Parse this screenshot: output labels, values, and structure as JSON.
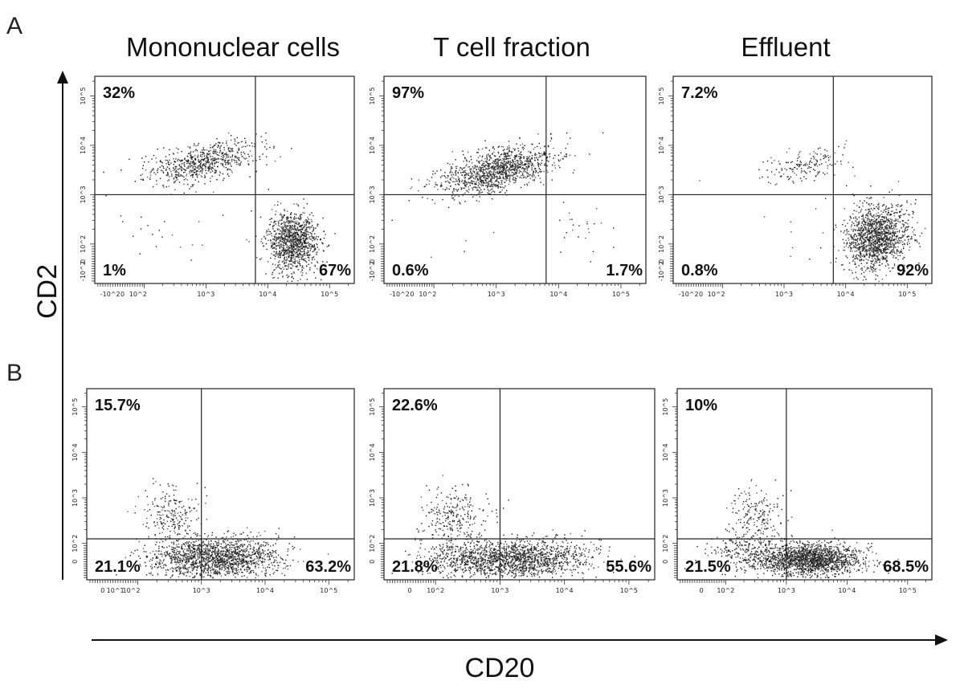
{
  "figure": {
    "panel_A": "A",
    "panel_B": "B",
    "column_titles": [
      "Mononuclear cells",
      "T cell fraction",
      "Effluent"
    ],
    "y_axis_title": "CD2",
    "x_axis_title": "CD20",
    "colors": {
      "dot": "#1a1a1a",
      "line": "#222222"
    }
  },
  "chart_data": [
    {
      "type": "scatter",
      "row": "A",
      "title": "Mononuclear cells",
      "xlabel": "CD20",
      "ylabel": "CD2",
      "quadrants": {
        "UL": "32%",
        "UR": "",
        "LL": "1%",
        "LR": "67%"
      },
      "xgate": 3.8,
      "ygate": 3.0,
      "x_ticks": [
        "-10^2",
        "0",
        "10^2",
        "10^3",
        "10^4",
        "10^5"
      ],
      "y_ticks": [
        "10^5",
        "10^4",
        "10^3",
        "10^2",
        "0",
        "-10^2"
      ],
      "clusters": [
        {
          "cx": 2.9,
          "cy": 3.65,
          "sx": 0.45,
          "sy": 0.18,
          "n": 700,
          "tilt": 0.25
        },
        {
          "cx": 4.4,
          "cy": 2.05,
          "sx": 0.2,
          "sy": 0.3,
          "n": 1100,
          "tilt": 0
        },
        {
          "cx": 2.4,
          "cy": 2.2,
          "sx": 0.7,
          "sy": 0.5,
          "n": 30,
          "tilt": 0
        }
      ]
    },
    {
      "type": "scatter",
      "row": "A",
      "title": "T cell fraction",
      "xlabel": "CD20",
      "ylabel": "CD2",
      "quadrants": {
        "UL": "97%",
        "UR": "",
        "LL": "0.6%",
        "LR": "1.7%"
      },
      "xgate": 3.8,
      "ygate": 3.0,
      "x_ticks": [
        "-10^2",
        "0",
        "10^2",
        "10^3",
        "10^4",
        "10^5"
      ],
      "y_ticks": [
        "10^5",
        "10^4",
        "10^3",
        "10^2",
        "0",
        "-10^2"
      ],
      "clusters": [
        {
          "cx": 3.0,
          "cy": 3.5,
          "sx": 0.45,
          "sy": 0.2,
          "n": 1200,
          "tilt": 0.3
        },
        {
          "cx": 4.4,
          "cy": 2.3,
          "sx": 0.25,
          "sy": 0.3,
          "n": 25,
          "tilt": 0
        },
        {
          "cx": 2.4,
          "cy": 2.4,
          "sx": 0.5,
          "sy": 0.4,
          "n": 6,
          "tilt": 0
        }
      ]
    },
    {
      "type": "scatter",
      "row": "A",
      "title": "Effluent",
      "xlabel": "CD20",
      "ylabel": "CD2",
      "quadrants": {
        "UL": "7.2%",
        "UR": "",
        "LL": "0.8%",
        "LR": "92%"
      },
      "xgate": 3.8,
      "ygate": 3.0,
      "x_ticks": [
        "-10^2",
        "0",
        "10^2",
        "10^3",
        "10^4",
        "10^5"
      ],
      "y_ticks": [
        "10^5",
        "10^4",
        "10^3",
        "10^2",
        "0",
        "-10^2"
      ],
      "clusters": [
        {
          "cx": 3.3,
          "cy": 3.6,
          "sx": 0.35,
          "sy": 0.15,
          "n": 160,
          "tilt": 0.25
        },
        {
          "cx": 4.5,
          "cy": 2.15,
          "sx": 0.25,
          "sy": 0.32,
          "n": 1400,
          "tilt": 0.2
        },
        {
          "cx": 3.4,
          "cy": 2.3,
          "sx": 0.5,
          "sy": 0.4,
          "n": 15,
          "tilt": 0
        }
      ]
    },
    {
      "type": "scatter",
      "row": "B",
      "title": "Mononuclear cells",
      "xlabel": "CD20",
      "ylabel": "CD2",
      "quadrants": {
        "UL": "15.7%",
        "UR": "",
        "LL": "21.1%",
        "LR": "63.2%"
      },
      "xgate": 3.0,
      "ygate": 2.1,
      "x_ticks": [
        "0",
        "10^1",
        "10^2",
        "10^3",
        "10^4",
        "10^5"
      ],
      "y_ticks": [
        "10^5",
        "10^4",
        "10^3",
        "10^2",
        "0"
      ],
      "clusters": [
        {
          "cx": 2.5,
          "cy": 2.6,
          "sx": 0.22,
          "sy": 0.3,
          "n": 220,
          "tilt": 0
        },
        {
          "cx": 3.2,
          "cy": 1.7,
          "sx": 0.5,
          "sy": 0.22,
          "n": 1600,
          "tilt": 0
        }
      ]
    },
    {
      "type": "scatter",
      "row": "B",
      "title": "T cell fraction",
      "xlabel": "CD20",
      "ylabel": "CD2",
      "quadrants": {
        "UL": "22.6%",
        "UR": "",
        "LL": "21.8%",
        "LR": "55.6%"
      },
      "xgate": 3.0,
      "ygate": 2.1,
      "x_ticks": [
        "0",
        "10^2",
        "10^3",
        "10^4",
        "10^5"
      ],
      "y_ticks": [
        "10^5",
        "10^4",
        "10^3",
        "10^2",
        "0"
      ],
      "clusters": [
        {
          "cx": 2.3,
          "cy": 2.6,
          "sx": 0.25,
          "sy": 0.3,
          "n": 260,
          "tilt": 0
        },
        {
          "cx": 3.3,
          "cy": 1.65,
          "sx": 0.5,
          "sy": 0.22,
          "n": 1400,
          "tilt": 0
        },
        {
          "cx": 2.4,
          "cy": 1.7,
          "sx": 0.35,
          "sy": 0.2,
          "n": 350,
          "tilt": 0
        }
      ]
    },
    {
      "type": "scatter",
      "row": "B",
      "title": "Effluent",
      "xlabel": "CD20",
      "ylabel": "CD2",
      "quadrants": {
        "UL": "10%",
        "UR": "",
        "LL": "21.5%",
        "LR": "68.5%"
      },
      "xgate": 3.0,
      "ygate": 2.1,
      "x_ticks": [
        "0",
        "10^2",
        "10^3",
        "10^4",
        "10^5"
      ],
      "y_ticks": [
        "10^5",
        "10^4",
        "10^3",
        "10^2",
        "0"
      ],
      "clusters": [
        {
          "cx": 2.5,
          "cy": 2.6,
          "sx": 0.25,
          "sy": 0.3,
          "n": 200,
          "tilt": 0
        },
        {
          "cx": 3.4,
          "cy": 1.65,
          "sx": 0.4,
          "sy": 0.17,
          "n": 1700,
          "tilt": 0
        },
        {
          "cx": 2.4,
          "cy": 1.8,
          "sx": 0.35,
          "sy": 0.2,
          "n": 300,
          "tilt": 0
        }
      ]
    }
  ]
}
